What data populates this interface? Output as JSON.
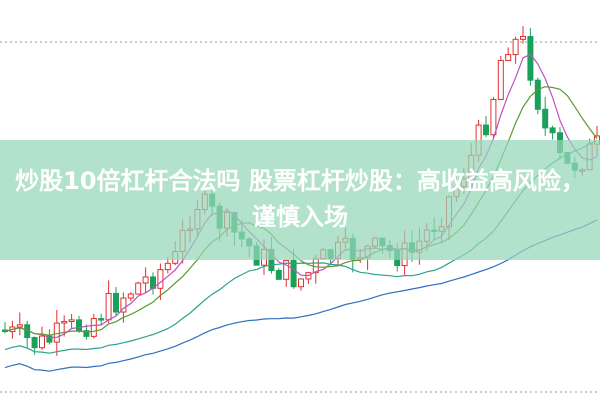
{
  "header": {
    "title": "炒股10倍杠杆合法吗 股票杠杆炒股：高收益高风险，谨慎入场"
  }
}
